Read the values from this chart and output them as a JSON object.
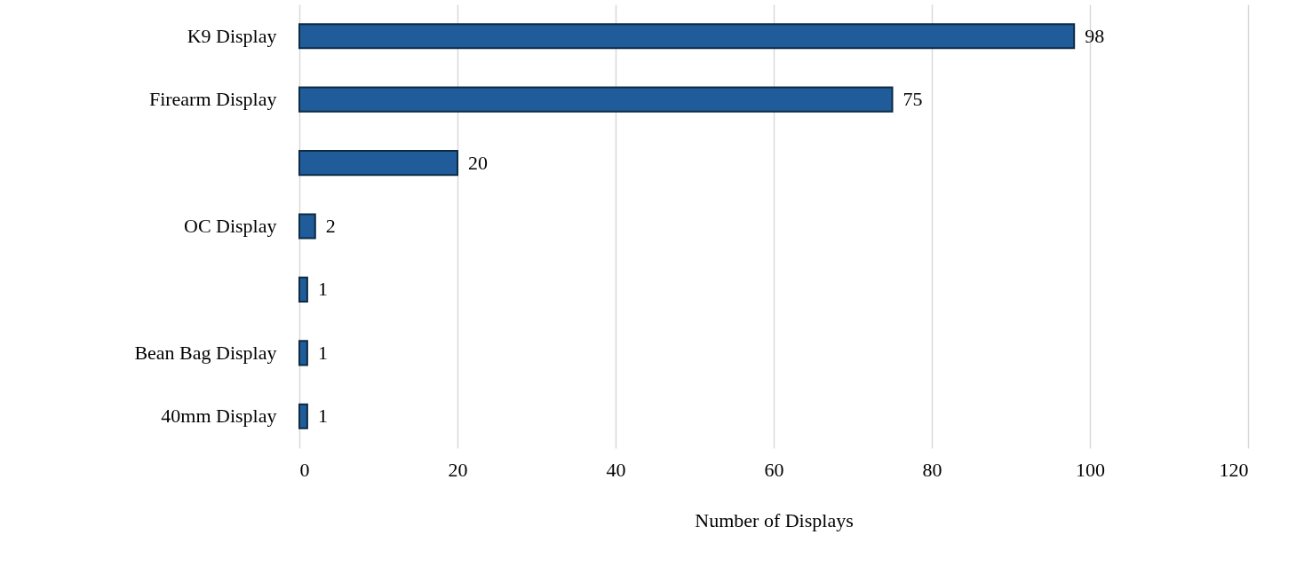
{
  "chart_data": {
    "type": "bar",
    "orientation": "horizontal",
    "xlabel": "Number of Displays",
    "categories": [
      "K9 Display",
      "Firearm Display",
      null,
      "OC Display",
      null,
      "Bean Bag Display",
      "40mm Display"
    ],
    "values": [
      98,
      75,
      20,
      2,
      1,
      1,
      1
    ],
    "color": "#1f5c99",
    "xlim": [
      0,
      120
    ],
    "xticks": [
      0,
      20,
      40,
      60,
      80,
      100,
      120
    ],
    "grid": "x",
    "data_labels": true
  }
}
